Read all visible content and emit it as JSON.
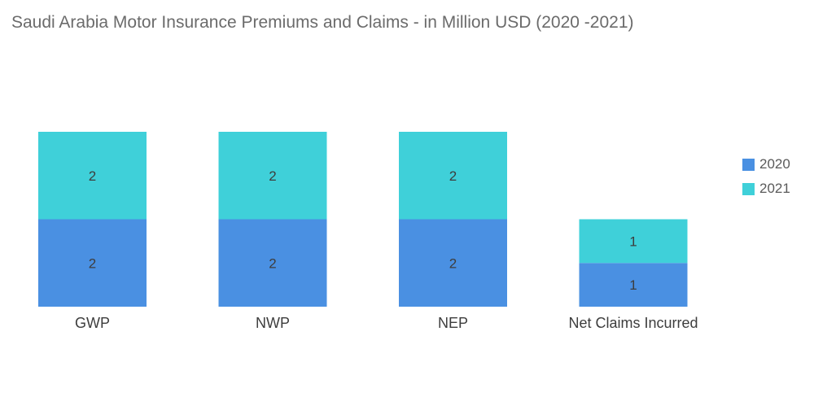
{
  "chart_data": {
    "type": "bar",
    "stacked": true,
    "title": "Saudi Arabia Motor Insurance Premiums and Claims - in Million USD (2020 -2021)",
    "categories": [
      "GWP",
      "NWP",
      "NEP",
      "Net Claims Incurred"
    ],
    "series": [
      {
        "name": "2020",
        "values": [
          2,
          2,
          2,
          1
        ],
        "color": "#4a90e2"
      },
      {
        "name": "2021",
        "values": [
          2,
          2,
          2,
          1
        ],
        "color": "#3fd0d9"
      }
    ],
    "ylim": [
      0,
      4
    ],
    "grid": false,
    "legend_position": "right",
    "xlabel": "",
    "ylabel": ""
  }
}
